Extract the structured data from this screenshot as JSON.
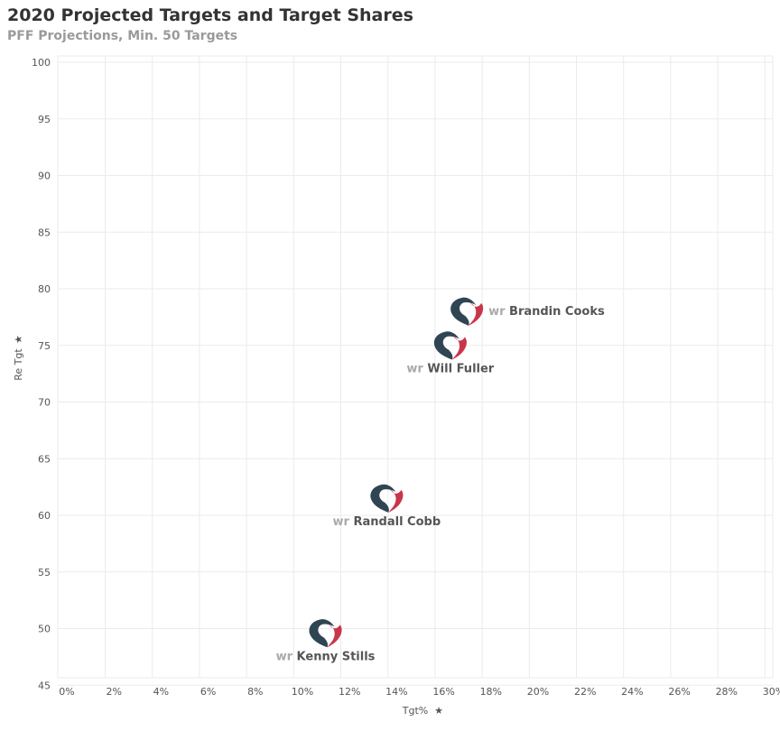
{
  "title": "2020 Projected Targets and Target Shares",
  "subtitle": "PFF Projections, Min. 50 Targets",
  "chart_data": {
    "type": "scatter",
    "title": "2020 Projected Targets and Target Shares",
    "subtitle": "PFF Projections, Min. 50 Targets",
    "xlabel": "Tgt%",
    "ylabel": "Re Tgt",
    "xlim": [
      0,
      30
    ],
    "ylim": [
      45,
      100
    ],
    "x_ticks": [
      "0%",
      "2%",
      "4%",
      "6%",
      "8%",
      "10%",
      "12%",
      "14%",
      "16%",
      "18%",
      "20%",
      "22%",
      "24%",
      "26%",
      "28%",
      "30%"
    ],
    "y_ticks": [
      "45",
      "50",
      "55",
      "60",
      "65",
      "70",
      "75",
      "80",
      "85",
      "90",
      "95",
      "100"
    ],
    "grid": true,
    "points": [
      {
        "position": "wr",
        "name": "Brandin Cooks",
        "x": 16.9,
        "y": 78.1,
        "label_side": "right"
      },
      {
        "position": "wr",
        "name": "Will Fuller",
        "x": 16.2,
        "y": 75.1,
        "label_side": "below"
      },
      {
        "position": "wr",
        "name": "Randall Cobb",
        "x": 13.5,
        "y": 61.6,
        "label_side": "below"
      },
      {
        "position": "wr",
        "name": "Kenny Stills",
        "x": 10.9,
        "y": 49.7,
        "label_side": "below"
      }
    ],
    "colors": {
      "logo_navy": "#03202f",
      "logo_red": "#a71930",
      "grid": "#ebebeb"
    }
  }
}
